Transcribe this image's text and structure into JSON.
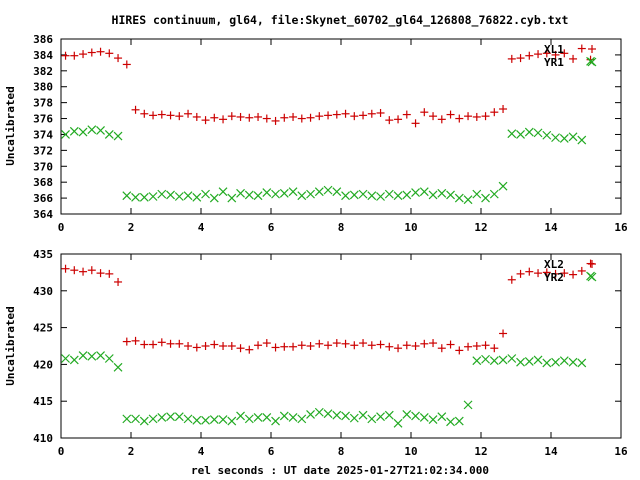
{
  "chart_data": {
    "type": "scatter",
    "title": "HIRES continuum, gl64, file:Skynet_60702_gl64_126808_76822.cyb.txt",
    "xlabel": "rel seconds : UT date 2025-01-27T21:02:34.000",
    "colors": {
      "series1": "#cc0000",
      "series2": "#22aa22",
      "axis": "#000000"
    },
    "panels": [
      {
        "ylabel": "Uncalibrated",
        "xlim": [
          0,
          16
        ],
        "ylim": [
          364,
          386
        ],
        "xticks": [
          0,
          2,
          4,
          6,
          8,
          10,
          12,
          14,
          16
        ],
        "yticks": [
          364,
          366,
          368,
          370,
          372,
          374,
          376,
          378,
          380,
          382,
          384,
          386
        ],
        "series": [
          {
            "name": "XL1",
            "marker": "plus",
            "x": [
              0.13,
              0.38,
              0.63,
              0.88,
              1.13,
              1.38,
              1.63,
              1.88,
              2.13,
              2.38,
              2.63,
              2.88,
              3.13,
              3.38,
              3.63,
              3.88,
              4.13,
              4.38,
              4.63,
              4.88,
              5.13,
              5.38,
              5.63,
              5.88,
              6.13,
              6.38,
              6.63,
              6.88,
              7.13,
              7.38,
              7.63,
              7.88,
              8.13,
              8.38,
              8.63,
              8.88,
              9.13,
              9.38,
              9.63,
              9.88,
              10.13,
              10.38,
              10.63,
              10.88,
              11.13,
              11.38,
              11.63,
              11.88,
              12.13,
              12.38,
              12.63,
              12.88,
              13.13,
              13.38,
              13.63,
              13.88,
              14.13,
              14.38,
              14.63,
              14.88,
              15.13
            ],
            "y": [
              383.9,
              383.9,
              384.1,
              384.3,
              384.4,
              384.2,
              383.6,
              382.8,
              377.1,
              376.6,
              376.4,
              376.5,
              376.4,
              376.3,
              376.6,
              376.2,
              375.8,
              376.1,
              375.9,
              376.3,
              376.2,
              376.1,
              376.2,
              376.0,
              375.7,
              376.1,
              376.2,
              376.0,
              376.1,
              376.3,
              376.4,
              376.5,
              376.6,
              376.3,
              376.4,
              376.6,
              376.7,
              375.8,
              375.9,
              376.5,
              375.4,
              376.8,
              376.3,
              375.9,
              376.5,
              376.0,
              376.3,
              376.2,
              376.3,
              376.8,
              377.2,
              383.5,
              383.6,
              383.9,
              384.1,
              384.2,
              384.0,
              384.2,
              383.5,
              384.8,
              383.4
            ],
            "point_count_hint": 61
          },
          {
            "name": "YR1",
            "marker": "cross",
            "x": [
              0.13,
              0.38,
              0.63,
              0.88,
              1.13,
              1.38,
              1.63,
              1.88,
              2.13,
              2.38,
              2.63,
              2.88,
              3.13,
              3.38,
              3.63,
              3.88,
              4.13,
              4.38,
              4.63,
              4.88,
              5.13,
              5.38,
              5.63,
              5.88,
              6.13,
              6.38,
              6.63,
              6.88,
              7.13,
              7.38,
              7.63,
              7.88,
              8.13,
              8.38,
              8.63,
              8.88,
              9.13,
              9.38,
              9.63,
              9.88,
              10.13,
              10.38,
              10.63,
              10.88,
              11.13,
              11.38,
              11.63,
              11.88,
              12.13,
              12.38,
              12.63,
              12.88,
              13.13,
              13.38,
              13.63,
              13.88,
              14.13,
              14.38,
              14.63,
              14.88,
              15.13
            ],
            "y": [
              374.0,
              374.4,
              374.3,
              374.6,
              374.5,
              374.0,
              373.8,
              366.3,
              366.1,
              366.1,
              366.2,
              366.5,
              366.4,
              366.2,
              366.3,
              366.1,
              366.5,
              366.0,
              366.8,
              366.0,
              366.6,
              366.4,
              366.3,
              366.7,
              366.5,
              366.6,
              366.8,
              366.3,
              366.5,
              366.8,
              367.0,
              366.8,
              366.3,
              366.4,
              366.5,
              366.3,
              366.2,
              366.5,
              366.3,
              366.4,
              366.7,
              366.8,
              366.4,
              366.6,
              366.4,
              366.0,
              365.8,
              366.5,
              366.0,
              366.5,
              367.5,
              374.1,
              374.0,
              374.3,
              374.2,
              373.9,
              373.6,
              373.5,
              373.7,
              373.3,
              383.2
            ]
          }
        ]
      },
      {
        "ylabel": "Uncalibrated",
        "xlim": [
          0,
          16
        ],
        "ylim": [
          410,
          435
        ],
        "xticks": [
          0,
          2,
          4,
          6,
          8,
          10,
          12,
          14,
          16
        ],
        "yticks": [
          410,
          415,
          420,
          425,
          430,
          435
        ],
        "series": [
          {
            "name": "XL2",
            "marker": "plus",
            "x": [
              0.13,
              0.38,
              0.63,
              0.88,
              1.13,
              1.38,
              1.63,
              1.88,
              2.13,
              2.38,
              2.63,
              2.88,
              3.13,
              3.38,
              3.63,
              3.88,
              4.13,
              4.38,
              4.63,
              4.88,
              5.13,
              5.38,
              5.63,
              5.88,
              6.13,
              6.38,
              6.63,
              6.88,
              7.13,
              7.38,
              7.63,
              7.88,
              8.13,
              8.38,
              8.63,
              8.88,
              9.13,
              9.38,
              9.63,
              9.88,
              10.13,
              10.38,
              10.63,
              10.88,
              11.13,
              11.38,
              11.63,
              11.88,
              12.13,
              12.38,
              12.63,
              12.88,
              13.13,
              13.38,
              13.63,
              13.88,
              14.13,
              14.38,
              14.63,
              14.88,
              15.13
            ],
            "y": [
              433.0,
              432.8,
              432.6,
              432.8,
              432.4,
              432.3,
              431.2,
              423.1,
              423.2,
              422.7,
              422.7,
              423.0,
              422.8,
              422.8,
              422.5,
              422.3,
              422.5,
              422.7,
              422.5,
              422.5,
              422.2,
              422.0,
              422.6,
              422.9,
              422.3,
              422.4,
              422.4,
              422.6,
              422.5,
              422.8,
              422.6,
              422.9,
              422.8,
              422.6,
              422.9,
              422.6,
              422.7,
              422.4,
              422.2,
              422.6,
              422.5,
              422.8,
              422.9,
              422.2,
              422.7,
              421.9,
              422.4,
              422.5,
              422.6,
              422.2,
              424.2,
              431.5,
              432.3,
              432.6,
              432.4,
              432.5,
              432.3,
              432.4,
              432.2,
              432.7,
              433.7
            ],
            "point_count_hint": 61
          },
          {
            "name": "YR2",
            "marker": "cross",
            "x": [
              0.13,
              0.38,
              0.63,
              0.88,
              1.13,
              1.38,
              1.63,
              1.88,
              2.13,
              2.38,
              2.63,
              2.88,
              3.13,
              3.38,
              3.63,
              3.88,
              4.13,
              4.38,
              4.63,
              4.88,
              5.13,
              5.38,
              5.63,
              5.88,
              6.13,
              6.38,
              6.63,
              6.88,
              7.13,
              7.38,
              7.63,
              7.88,
              8.13,
              8.38,
              8.63,
              8.88,
              9.13,
              9.38,
              9.63,
              9.88,
              10.13,
              10.38,
              10.63,
              10.88,
              11.13,
              11.38,
              11.63,
              11.88,
              12.13,
              12.38,
              12.63,
              12.88,
              13.13,
              13.38,
              13.63,
              13.88,
              14.13,
              14.38,
              14.63,
              14.88,
              15.13
            ],
            "y": [
              420.8,
              420.6,
              421.2,
              421.1,
              421.2,
              420.8,
              419.6,
              412.6,
              412.6,
              412.3,
              412.6,
              412.8,
              412.9,
              412.9,
              412.6,
              412.4,
              412.4,
              412.5,
              412.5,
              412.3,
              413.0,
              412.6,
              412.8,
              412.8,
              412.3,
              413.0,
              412.8,
              412.6,
              413.2,
              413.5,
              413.3,
              413.1,
              413.0,
              412.7,
              413.1,
              412.6,
              412.9,
              413.1,
              412.0,
              413.2,
              413.0,
              412.8,
              412.5,
              412.9,
              412.2,
              412.3,
              414.5,
              420.5,
              420.7,
              420.5,
              420.6,
              420.8,
              420.3,
              420.4,
              420.6,
              420.2,
              420.3,
              420.5,
              420.3,
              420.2,
              432.0
            ]
          }
        ]
      }
    ]
  }
}
